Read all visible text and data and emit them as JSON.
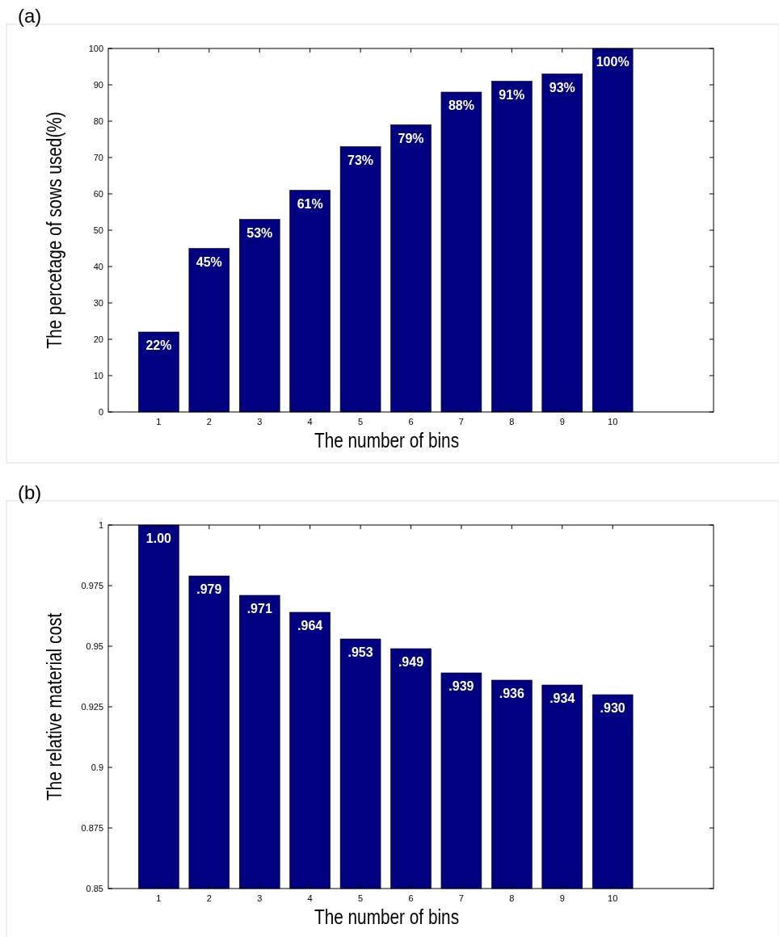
{
  "chart_data": [
    {
      "type": "bar",
      "title": "(a)",
      "xlabel": "The number of bins",
      "ylabel": "The percetage of sows used(%)",
      "x": [
        1,
        2,
        3,
        4,
        5,
        6,
        7,
        8,
        9,
        10
      ],
      "xlim": [
        0,
        12
      ],
      "xticks": [
        1,
        2,
        3,
        4,
        5,
        6,
        7,
        8,
        9,
        10
      ],
      "ylim": [
        0,
        100
      ],
      "yticks": [
        0,
        10,
        20,
        30,
        40,
        50,
        60,
        70,
        80,
        90,
        100
      ],
      "series": [
        {
          "color": "#000080",
          "values": [
            22,
            45,
            53,
            61,
            73,
            79,
            88,
            91,
            93,
            100
          ],
          "value_labels": [
            "22%",
            "45%",
            "53%",
            "61%",
            "73%",
            "79%",
            "88%",
            "91%",
            "93%",
            "100%"
          ]
        }
      ]
    },
    {
      "type": "bar",
      "title": "(b)",
      "xlabel": "The number of bins",
      "ylabel": "The relative material cost",
      "x": [
        1,
        2,
        3,
        4,
        5,
        6,
        7,
        8,
        9,
        10
      ],
      "xlim": [
        0,
        12
      ],
      "xticks": [
        1,
        2,
        3,
        4,
        5,
        6,
        7,
        8,
        9,
        10
      ],
      "ylim": [
        0.85,
        1
      ],
      "yticks": [
        0.85,
        0.875,
        0.9,
        0.925,
        0.95,
        0.975,
        1
      ],
      "series": [
        {
          "color": "#000080",
          "values": [
            1.0,
            0.979,
            0.971,
            0.964,
            0.953,
            0.949,
            0.939,
            0.936,
            0.934,
            0.93
          ],
          "value_labels": [
            "1.00",
            ".979",
            ".971",
            ".964",
            ".953",
            ".949",
            ".939",
            ".936",
            ".934",
            ".930"
          ]
        }
      ]
    }
  ]
}
